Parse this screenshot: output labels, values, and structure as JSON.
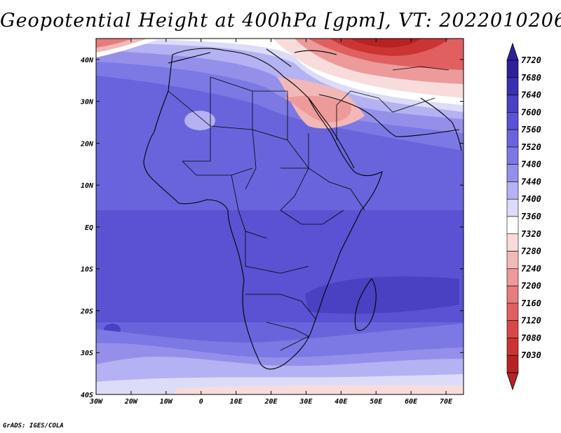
{
  "title": "Geopotential Height at 400hPa [gpm], VT: 2022010206",
  "credit": "GrADS: IGES/COLA",
  "map": {
    "lon_range": [
      -30,
      75
    ],
    "lat_range": [
      -40,
      45
    ],
    "lon_ticks": [
      {
        "value": -30,
        "label": "30W"
      },
      {
        "value": -20,
        "label": "20W"
      },
      {
        "value": -10,
        "label": "10W"
      },
      {
        "value": 0,
        "label": "0"
      },
      {
        "value": 10,
        "label": "10E"
      },
      {
        "value": 20,
        "label": "20E"
      },
      {
        "value": 30,
        "label": "30E"
      },
      {
        "value": 40,
        "label": "40E"
      },
      {
        "value": 50,
        "label": "50E"
      },
      {
        "value": 60,
        "label": "60E"
      },
      {
        "value": 70,
        "label": "70E"
      }
    ],
    "lat_ticks": [
      {
        "value": 40,
        "label": "40N"
      },
      {
        "value": 30,
        "label": "30N"
      },
      {
        "value": 20,
        "label": "20N"
      },
      {
        "value": 10,
        "label": "10N"
      },
      {
        "value": 0,
        "label": "EQ"
      },
      {
        "value": -10,
        "label": "10S"
      },
      {
        "value": -20,
        "label": "20S"
      },
      {
        "value": -30,
        "label": "30S"
      },
      {
        "value": -40,
        "label": "40S"
      }
    ]
  },
  "colorbar": {
    "levels": [
      {
        "label": "7720",
        "color": "#2e1f9a"
      },
      {
        "label": "7680",
        "color": "#3a2fae"
      },
      {
        "label": "7640",
        "color": "#4a40c2"
      },
      {
        "label": "7600",
        "color": "#5a52d2"
      },
      {
        "label": "7560",
        "color": "#6a64dc"
      },
      {
        "label": "7520",
        "color": "#7c78e4"
      },
      {
        "label": "7480",
        "color": "#9490ea"
      },
      {
        "label": "7440",
        "color": "#b4b2f2"
      },
      {
        "label": "7400",
        "color": "#dcdcf8"
      },
      {
        "label": "7360",
        "color": "#ffffff"
      },
      {
        "label": "7320",
        "color": "#f8dcdc"
      },
      {
        "label": "7280",
        "color": "#f2b8b8"
      },
      {
        "label": "7240",
        "color": "#ec9a9a"
      },
      {
        "label": "7200",
        "color": "#e67c7c"
      },
      {
        "label": "7160",
        "color": "#e06060"
      },
      {
        "label": "7120",
        "color": "#d84848"
      },
      {
        "label": "7080",
        "color": "#cc3434"
      },
      {
        "label": "7030",
        "color": "#b82222"
      }
    ]
  }
}
